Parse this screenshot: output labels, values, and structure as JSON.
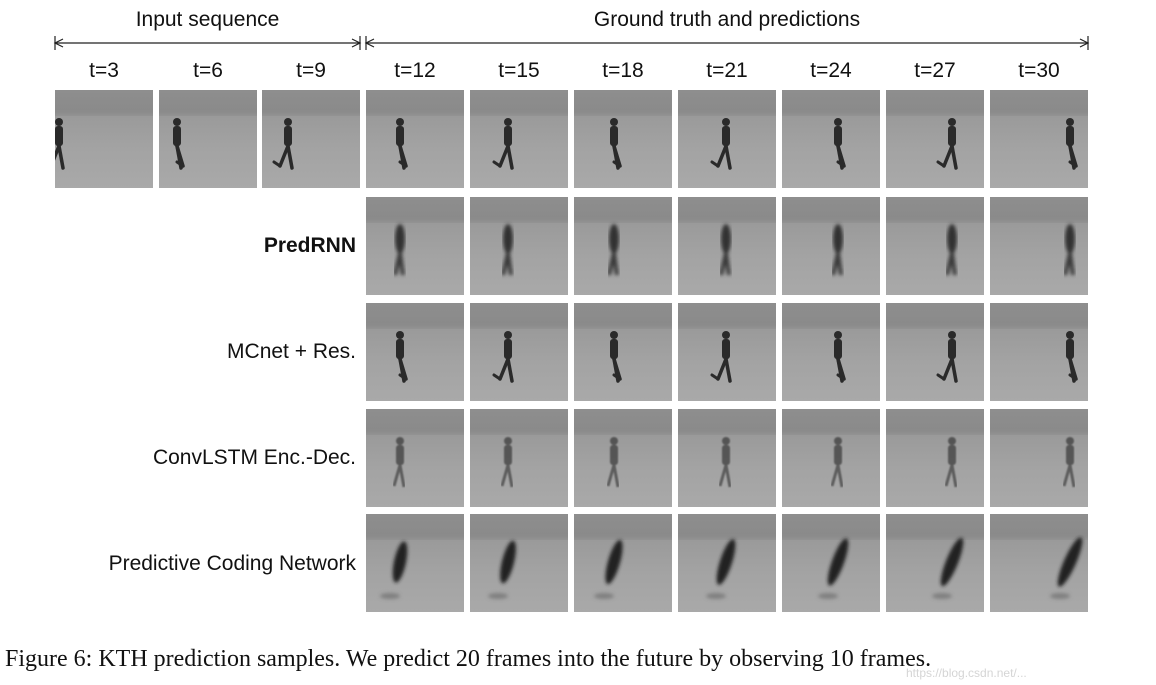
{
  "headers": {
    "input_sequence": "Input sequence",
    "ground_truth": "Ground truth and predictions"
  },
  "time_steps": [
    "t=3",
    "t=6",
    "t=9",
    "t=12",
    "t=15",
    "t=18",
    "t=21",
    "t=24",
    "t=27",
    "t=30"
  ],
  "rows": [
    {
      "label": "",
      "bold": false,
      "style": "gt",
      "frames": 10
    },
    {
      "label": "PredRNN",
      "bold": true,
      "style": "blur",
      "frames": 7
    },
    {
      "label": "MCnet + Res.",
      "bold": false,
      "style": "sharp",
      "frames": 7
    },
    {
      "label": "ConvLSTM Enc.-Dec.",
      "bold": false,
      "style": "fade",
      "frames": 7
    },
    {
      "label": "Predictive Coding Network",
      "bold": false,
      "style": "smear",
      "frames": 7
    }
  ],
  "caption": "Figure 6: KTH prediction samples. We predict 20 frames into the future by observing 10 frames.",
  "watermark": "https://blog.csdn.net/..."
}
